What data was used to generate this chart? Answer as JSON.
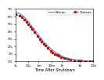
{
  "title": "",
  "xlabel": "Time After Shutdown",
  "ylabel": "",
  "legend_labels": [
    "Retran",
    "Todreas"
  ],
  "line_colors": [
    "#4472c4",
    "#cc0000"
  ],
  "line_styles": [
    "-",
    "--"
  ],
  "x_ticks": [
    1,
    10,
    60,
    600,
    3600,
    86400,
    864000
  ],
  "x_tick_labels": [
    "1s",
    "10s",
    "1m",
    "10m",
    "1h",
    "1d",
    "10d"
  ],
  "ylim": [
    0,
    0.07
  ],
  "y_ticks": [
    0.0,
    0.01,
    0.02,
    0.03,
    0.04,
    0.05,
    0.06,
    0.07
  ],
  "y_tick_labels": [
    "0%",
    "1%",
    "2%",
    "3%",
    "4%",
    "5%",
    "6%",
    "7%"
  ],
  "xscale": "log",
  "xlim": [
    1,
    864000
  ],
  "background_color": "#ffffff",
  "retran_x": [
    1,
    2,
    3,
    5,
    7,
    10,
    15,
    20,
    30,
    50,
    70,
    100,
    150,
    200,
    300,
    500,
    700,
    1000,
    1500,
    2000,
    3000,
    5000,
    7000,
    10000,
    15000,
    30000,
    60000,
    100000,
    200000,
    500000,
    864000
  ],
  "retran_y": [
    0.066,
    0.064,
    0.062,
    0.059,
    0.056,
    0.053,
    0.049,
    0.046,
    0.042,
    0.037,
    0.033,
    0.03,
    0.026,
    0.024,
    0.021,
    0.017,
    0.015,
    0.013,
    0.011,
    0.01,
    0.008,
    0.006,
    0.005,
    0.004,
    0.0035,
    0.0025,
    0.0017,
    0.0013,
    0.0009,
    0.0005,
    0.0003
  ],
  "todreas_x": [
    1,
    2,
    3,
    5,
    7,
    10,
    15,
    20,
    30,
    50,
    70,
    100,
    150,
    200,
    300,
    500,
    700,
    1000,
    1500,
    2000,
    3000,
    5000,
    7000,
    10000,
    15000,
    30000,
    60000,
    100000,
    200000,
    500000,
    864000
  ],
  "todreas_y": [
    0.063,
    0.061,
    0.059,
    0.056,
    0.053,
    0.05,
    0.046,
    0.043,
    0.039,
    0.034,
    0.03,
    0.027,
    0.023,
    0.021,
    0.018,
    0.014,
    0.012,
    0.01,
    0.0085,
    0.0075,
    0.006,
    0.0048,
    0.0042,
    0.0035,
    0.0028,
    0.002,
    0.0014,
    0.001,
    0.00075,
    0.00043,
    0.00027
  ]
}
